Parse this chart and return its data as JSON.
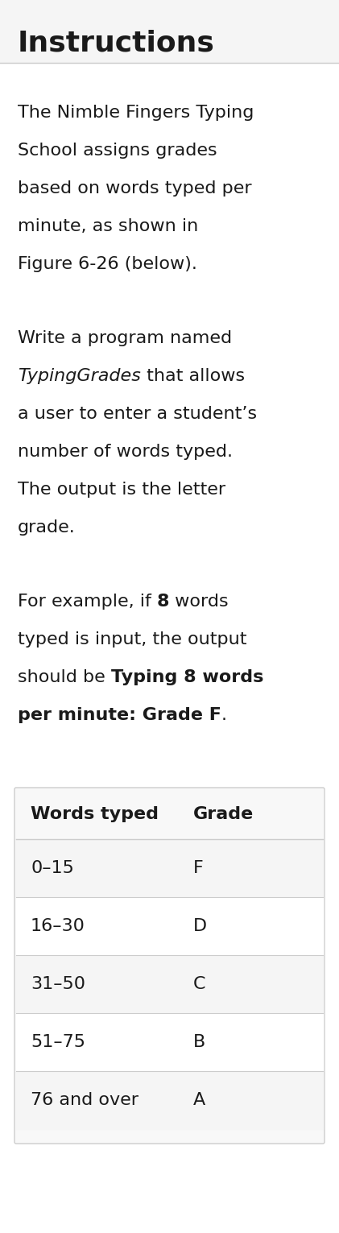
{
  "title": "Instructions",
  "title_fontsize": 26,
  "title_fontweight": "bold",
  "body_fontsize": 16,
  "background_color": "#ffffff",
  "header_bg": "#f5f5f5",
  "divider_color": "#cccccc",
  "text_color": "#1a1a1a",
  "p1_lines": [
    "The Nimble Fingers Typing",
    "School assigns grades",
    "based on words typed per",
    "minute, as shown in",
    "Figure 6-26 (below)."
  ],
  "p2_lines": [
    [
      [
        "Write a program named",
        "normal"
      ]
    ],
    [
      [
        "TypingGrades",
        "italic"
      ],
      [
        " that allows",
        "normal"
      ]
    ],
    [
      [
        "a user to enter a student’s",
        "normal"
      ]
    ],
    [
      [
        "number of words typed.",
        "normal"
      ]
    ],
    [
      [
        "The output is the letter",
        "normal"
      ]
    ],
    [
      [
        "grade.",
        "normal"
      ]
    ]
  ],
  "p3_lines": [
    [
      [
        "For example, if ",
        "normal"
      ],
      [
        "8",
        "bold"
      ],
      [
        " words",
        "normal"
      ]
    ],
    [
      [
        "typed is input, the output",
        "normal"
      ]
    ],
    [
      [
        "should be ",
        "normal"
      ],
      [
        "Typing 8 words",
        "bold"
      ]
    ],
    [
      [
        "per minute: Grade F",
        "bold"
      ],
      [
        ".",
        "normal"
      ]
    ]
  ],
  "table_header": [
    "Words typed",
    "Grade"
  ],
  "table_rows": [
    [
      "0–15",
      "F"
    ],
    [
      "16–30",
      "D"
    ],
    [
      "31–50",
      "C"
    ],
    [
      "51–75",
      "B"
    ],
    [
      "76 and over",
      "A"
    ]
  ],
  "table_fontsize": 16,
  "table_bg_header": "#f8f8f8",
  "table_bg_row_even": "#f5f5f5",
  "table_bg_row_odd": "#ffffff",
  "table_border_color": "#cccccc",
  "fig_width": 4.21,
  "fig_height": 15.31
}
